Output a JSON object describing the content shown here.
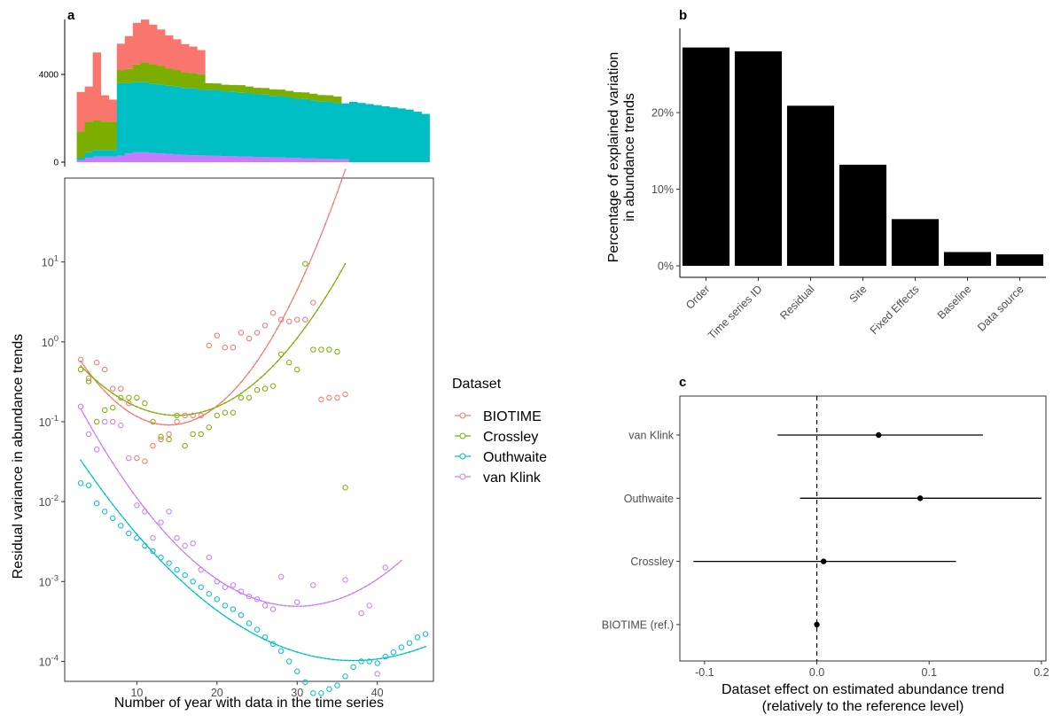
{
  "colors": {
    "BIOTIME": "#F8766D",
    "Crossley": "#7CAE00",
    "Outhwaite": "#00BFC4",
    "van Klink": "#C77CFF"
  },
  "chart_data": [
    {
      "panel": "a",
      "type": "area",
      "subtype": "stacked-histogram",
      "x": [
        3,
        4,
        5,
        6,
        7,
        8,
        9,
        10,
        11,
        12,
        13,
        14,
        15,
        16,
        17,
        18,
        19,
        20,
        21,
        22,
        23,
        24,
        25,
        26,
        27,
        28,
        29,
        30,
        31,
        32,
        33,
        34,
        35,
        36,
        37,
        38,
        39,
        40,
        41,
        42,
        43,
        44,
        45,
        46
      ],
      "series": [
        {
          "name": "van Klink",
          "values": [
            100,
            200,
            250,
            250,
            250,
            300,
            400,
            450,
            450,
            420,
            400,
            380,
            350,
            330,
            320,
            310,
            300,
            290,
            280,
            270,
            260,
            250,
            240,
            230,
            220,
            210,
            200,
            190,
            180,
            170,
            160,
            150,
            140,
            130,
            0,
            0,
            0,
            0,
            0,
            0,
            0,
            0,
            0,
            0
          ]
        },
        {
          "name": "Outhwaite",
          "values": [
            100,
            250,
            300,
            300,
            300,
            3300,
            3200,
            3200,
            3200,
            3150,
            3150,
            3100,
            3100,
            3050,
            3050,
            3000,
            3000,
            3000,
            2950,
            2950,
            2900,
            2900,
            2850,
            2850,
            2800,
            2800,
            2750,
            2700,
            2700,
            2650,
            2600,
            2600,
            2550,
            2550,
            2750,
            2700,
            2650,
            2600,
            2550,
            2500,
            2450,
            2400,
            2300,
            2200
          ]
        },
        {
          "name": "Crossley",
          "values": [
            1200,
            1400,
            1350,
            1300,
            1300,
            600,
            650,
            800,
            900,
            900,
            850,
            800,
            750,
            700,
            700,
            700,
            300,
            300,
            300,
            300,
            350,
            300,
            300,
            300,
            300,
            300,
            300,
            300,
            300,
            300,
            300,
            300,
            300,
            0,
            0,
            0,
            0,
            0,
            0,
            0,
            0,
            0,
            0,
            0
          ]
        },
        {
          "name": "BIOTIME",
          "values": [
            1800,
            1600,
            3100,
            1200,
            1000,
            1200,
            1500,
            1900,
            1950,
            1800,
            1650,
            1500,
            1400,
            1300,
            1200,
            1100,
            0,
            0,
            0,
            0,
            0,
            0,
            0,
            0,
            0,
            0,
            0,
            0,
            0,
            0,
            0,
            0,
            0,
            0,
            0,
            0,
            0,
            0,
            0,
            0,
            0,
            0,
            0,
            0
          ]
        }
      ],
      "yticks": [
        0,
        4000
      ],
      "ylim": [
        0,
        7500
      ],
      "xlim": [
        1,
        47
      ]
    },
    {
      "panel": "a",
      "type": "scatter",
      "xlabel": "Number of year with data in the time series",
      "ylabel": "Residual variance in abundance trends",
      "xticks": [
        10,
        20,
        30,
        40
      ],
      "xlim": [
        1,
        47
      ],
      "yscale": "log10",
      "yticks": [
        "10^-4",
        "10^-3",
        "10^-2",
        "10^-1",
        "10^0",
        "10^1"
      ],
      "ylim_log10": [
        -4.25,
        2.05
      ],
      "legend_title": "Dataset",
      "legend_position": "right",
      "series": [
        {
          "name": "BIOTIME",
          "points": [
            [
              3,
              0.6
            ],
            [
              4,
              0.35
            ],
            [
              5,
              0.55
            ],
            [
              6,
              0.45
            ],
            [
              7,
              0.26
            ],
            [
              8,
              0.26
            ],
            [
              9,
              0.17
            ],
            [
              10,
              0.035
            ],
            [
              11,
              0.032
            ],
            [
              12,
              0.05
            ],
            [
              13,
              0.06
            ],
            [
              14,
              0.07
            ],
            [
              15,
              0.1
            ],
            [
              16,
              0.12
            ],
            [
              17,
              0.12
            ],
            [
              18,
              0.12
            ],
            [
              19,
              0.9
            ],
            [
              20,
              1.2
            ],
            [
              21,
              0.85
            ],
            [
              22,
              0.85
            ],
            [
              23,
              1.3
            ],
            [
              24,
              1.1
            ],
            [
              25,
              1.3
            ],
            [
              26,
              1.6
            ],
            [
              27,
              2.3
            ],
            [
              28,
              1.9
            ],
            [
              29,
              1.8
            ],
            [
              30,
              1.9
            ],
            [
              31,
              1.9
            ],
            [
              32,
              3.1
            ],
            [
              33,
              0.19
            ],
            [
              34,
              0.2
            ],
            [
              35,
              0.2
            ],
            [
              36,
              0.22
            ]
          ],
          "fit_log10": {
            "vertex_x": 14,
            "vertex_y": -1.04,
            "a": 0.0066,
            "x_range": [
              3,
              36
            ]
          }
        },
        {
          "name": "Crossley",
          "points": [
            [
              3,
              0.45
            ],
            [
              4,
              0.32
            ],
            [
              5,
              0.1
            ],
            [
              6,
              0.14
            ],
            [
              7,
              0.15
            ],
            [
              8,
              0.2
            ],
            [
              9,
              0.2
            ],
            [
              10,
              0.2
            ],
            [
              11,
              0.17
            ],
            [
              12,
              0.1
            ],
            [
              13,
              0.065
            ],
            [
              14,
              0.06
            ],
            [
              15,
              0.12
            ],
            [
              16,
              0.05
            ],
            [
              17,
              0.07
            ],
            [
              18,
              0.07
            ],
            [
              19,
              0.085
            ],
            [
              20,
              0.12
            ],
            [
              21,
              0.13
            ],
            [
              22,
              0.13
            ],
            [
              23,
              0.2
            ],
            [
              24,
              0.2
            ],
            [
              25,
              0.25
            ],
            [
              26,
              0.26
            ],
            [
              27,
              0.28
            ],
            [
              28,
              0.7
            ],
            [
              29,
              0.55
            ],
            [
              30,
              0.45
            ],
            [
              31,
              9.5
            ],
            [
              32,
              0.8
            ],
            [
              33,
              0.8
            ],
            [
              34,
              0.8
            ],
            [
              35,
              0.75
            ],
            [
              36,
              0.015
            ]
          ],
          "fit_log10": {
            "vertex_x": 15,
            "vertex_y": -0.92,
            "a": 0.0043,
            "x_range": [
              3,
              36
            ]
          }
        },
        {
          "name": "Outhwaite",
          "points": [
            [
              3,
              0.017
            ],
            [
              4,
              0.016
            ],
            [
              5,
              0.0095
            ],
            [
              6,
              0.0075
            ],
            [
              7,
              0.0062
            ],
            [
              8,
              0.005
            ],
            [
              9,
              0.004
            ],
            [
              10,
              0.0035
            ],
            [
              11,
              0.0028
            ],
            [
              12,
              0.0024
            ],
            [
              13,
              0.002
            ],
            [
              14,
              0.0017
            ],
            [
              15,
              0.0014
            ],
            [
              16,
              0.0012
            ],
            [
              17,
              0.001
            ],
            [
              18,
              0.00085
            ],
            [
              19,
              0.0007
            ],
            [
              20,
              0.0006
            ],
            [
              21,
              0.0005
            ],
            [
              22,
              0.00045
            ],
            [
              23,
              0.00038
            ],
            [
              24,
              0.0003
            ],
            [
              25,
              0.00025
            ],
            [
              26,
              0.0002
            ],
            [
              27,
              0.000165
            ],
            [
              28,
              0.000135
            ],
            [
              29,
              0.0001
            ],
            [
              30,
              7.5e-05
            ],
            [
              31,
              5.5e-05
            ],
            [
              32,
              4e-05
            ],
            [
              33,
              4e-05
            ],
            [
              34,
              4.5e-05
            ],
            [
              35,
              5e-05
            ],
            [
              36,
              6.5e-05
            ],
            [
              37,
              8.5e-05
            ],
            [
              38,
              0.0001
            ],
            [
              39,
              0.0001
            ],
            [
              40,
              9.5e-05
            ],
            [
              41,
              0.000115
            ],
            [
              42,
              0.00013
            ],
            [
              43,
              0.00015
            ],
            [
              44,
              0.00017
            ],
            [
              45,
              0.0002
            ],
            [
              46,
              0.00022
            ]
          ],
          "fit_log10": {
            "vertex_x": 37,
            "vertex_y": -3.99,
            "a": 0.00217,
            "x_range": [
              3,
              46
            ]
          }
        },
        {
          "name": "van Klink",
          "points": [
            [
              3,
              0.155
            ],
            [
              4,
              0.07
            ],
            [
              5,
              0.045
            ],
            [
              6,
              0.1
            ],
            [
              7,
              0.1
            ],
            [
              8,
              0.09
            ],
            [
              9,
              0.035
            ],
            [
              10,
              0.009
            ],
            [
              11,
              0.0075
            ],
            [
              12,
              0.0035
            ],
            [
              13,
              0.0055
            ],
            [
              14,
              0.0075
            ],
            [
              15,
              0.0035
            ],
            [
              16,
              0.0028
            ],
            [
              17,
              0.003
            ],
            [
              18,
              0.0014
            ],
            [
              19,
              0.002
            ],
            [
              20,
              0.001
            ],
            [
              21,
              0.00085
            ],
            [
              22,
              0.0009
            ],
            [
              23,
              0.00075
            ],
            [
              24,
              0.00065
            ],
            [
              25,
              0.0006
            ],
            [
              26,
              0.0005
            ],
            [
              27,
              0.00045
            ],
            [
              28,
              0.00115
            ],
            [
              30,
              0.00055
            ],
            [
              32,
              0.0009
            ],
            [
              36,
              0.00105
            ],
            [
              38,
              0.0004
            ],
            [
              39,
              0.0005
            ],
            [
              40,
              7e-05
            ],
            [
              41,
              0.0015
            ]
          ],
          "fit_log10": {
            "vertex_x": 30,
            "vertex_y": -3.31,
            "a": 0.00339,
            "x_range": [
              3,
              43
            ]
          }
        }
      ]
    },
    {
      "panel": "b",
      "type": "bar",
      "ylabel": "Percentage of explained variation in abundance trends",
      "ylabel_lines": [
        "Percentage of explained variation",
        "in abundance trends"
      ],
      "categories": [
        "Order",
        "Time series ID",
        "Residual",
        "Site",
        "Fixed Effects",
        "Baseline",
        "Data source"
      ],
      "values": [
        28.5,
        28,
        20.9,
        13.2,
        6.1,
        1.8,
        1.5
      ],
      "yticks": [
        "0%",
        "10%",
        "20%"
      ],
      "ylim": [
        -1.5,
        31
      ]
    },
    {
      "panel": "c",
      "type": "scatter",
      "subtype": "coefficient-plot",
      "xlabel": "Dataset effect on estimated abundance trend (relatively to the reference level)",
      "xlabel_lines": [
        "Dataset effect on estimated abundance trend",
        "(relatively to the reference level)"
      ],
      "categories": [
        "van Klink",
        "Outhwaite",
        "Crossley",
        "BIOTIME (ref.)"
      ],
      "estimates": [
        0.055,
        0.092,
        0.006,
        0.0
      ],
      "lower": [
        -0.035,
        -0.015,
        -0.11,
        0.0
      ],
      "upper": [
        0.148,
        0.2,
        0.124,
        0.0
      ],
      "xticks": [
        "-0.1",
        "0.0",
        "0.1",
        "0.2"
      ],
      "xlim": [
        -0.122,
        0.204
      ],
      "reference_line": 0
    }
  ],
  "panel_letters": {
    "a": "a",
    "b": "b",
    "c": "c"
  }
}
